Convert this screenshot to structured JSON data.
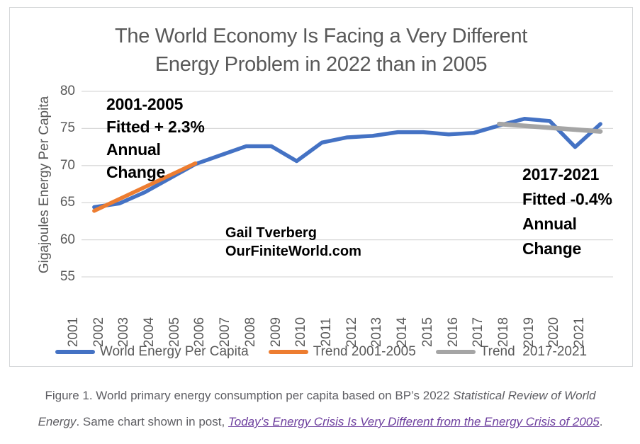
{
  "figure": {
    "title_lines": [
      "The World Economy Is Facing a Very Different",
      "Energy Problem in 2022 than in 2005"
    ],
    "watermark_lines": [
      "Gail Tverberg",
      "OurFiniteWorld.com"
    ],
    "annotation_left": {
      "lines": [
        "2001-2005",
        "Fitted + 2.3%",
        "Annual",
        "Change"
      ]
    },
    "annotation_right": {
      "lines": [
        "2017-2021",
        "Fitted -0.4%",
        "Annual",
        "Change"
      ]
    }
  },
  "chart_data": {
    "type": "line",
    "title": "The World Economy Is Facing a Very Different Energy Problem in 2022 than in 2005",
    "xlabel": "",
    "ylabel": "Gigajoules Energy Per Capita",
    "ylim": [
      55,
      80
    ],
    "yticks": [
      55,
      60,
      65,
      70,
      75,
      80
    ],
    "grid": true,
    "gridline_color": "#d9d9d9",
    "legend_position": "bottom",
    "x": [
      2001,
      2002,
      2003,
      2004,
      2005,
      2006,
      2007,
      2008,
      2009,
      2010,
      2011,
      2012,
      2013,
      2014,
      2015,
      2016,
      2017,
      2018,
      2019,
      2020,
      2021
    ],
    "series": [
      {
        "name": "World Energy Per Capita",
        "color": "#4472c4",
        "stroke_width": 5.5,
        "x": [
          2001,
          2002,
          2003,
          2004,
          2005,
          2006,
          2007,
          2008,
          2009,
          2010,
          2011,
          2012,
          2013,
          2014,
          2015,
          2016,
          2017,
          2018,
          2019,
          2020,
          2021
        ],
        "values": [
          64.4,
          64.9,
          66.4,
          68.3,
          70.2,
          71.4,
          72.6,
          72.6,
          70.6,
          73.1,
          73.8,
          74.0,
          74.5,
          74.5,
          74.2,
          74.4,
          75.4,
          76.3,
          76.0,
          72.5,
          75.6
        ]
      },
      {
        "name": "Trend 2001-2005",
        "color": "#ed7d31",
        "stroke_width": 5.5,
        "x": [
          2001,
          2005
        ],
        "values": [
          63.9,
          70.3
        ]
      },
      {
        "name": "Trend  2017-2021",
        "color": "#a5a5a5",
        "stroke_width": 6.5,
        "x": [
          2017,
          2021
        ],
        "values": [
          75.6,
          74.6
        ]
      }
    ],
    "annotations": [
      "2001-2005 Fitted + 2.3% Annual Change",
      "2017-2021 Fitted -0.4% Annual Change",
      "Gail Tverberg OurFiniteWorld.com"
    ]
  },
  "caption": {
    "color": "#5e5e63",
    "link_color": "#6d3f9e",
    "lines": [
      [
        {
          "text": "Figure 1. World primary energy consumption per capita based on BP’s 2022 ",
          "style": "plain"
        },
        {
          "text": "Statistical Review of World",
          "style": "italic"
        }
      ],
      [
        {
          "text": "Energy",
          "style": "italic"
        },
        {
          "text": ". Same chart shown in post, ",
          "style": "plain"
        },
        {
          "text": "Today’s Energy Crisis Is Very Different from the Energy Crisis of 2005",
          "style": "link"
        },
        {
          "text": ".",
          "style": "plain"
        }
      ]
    ]
  }
}
